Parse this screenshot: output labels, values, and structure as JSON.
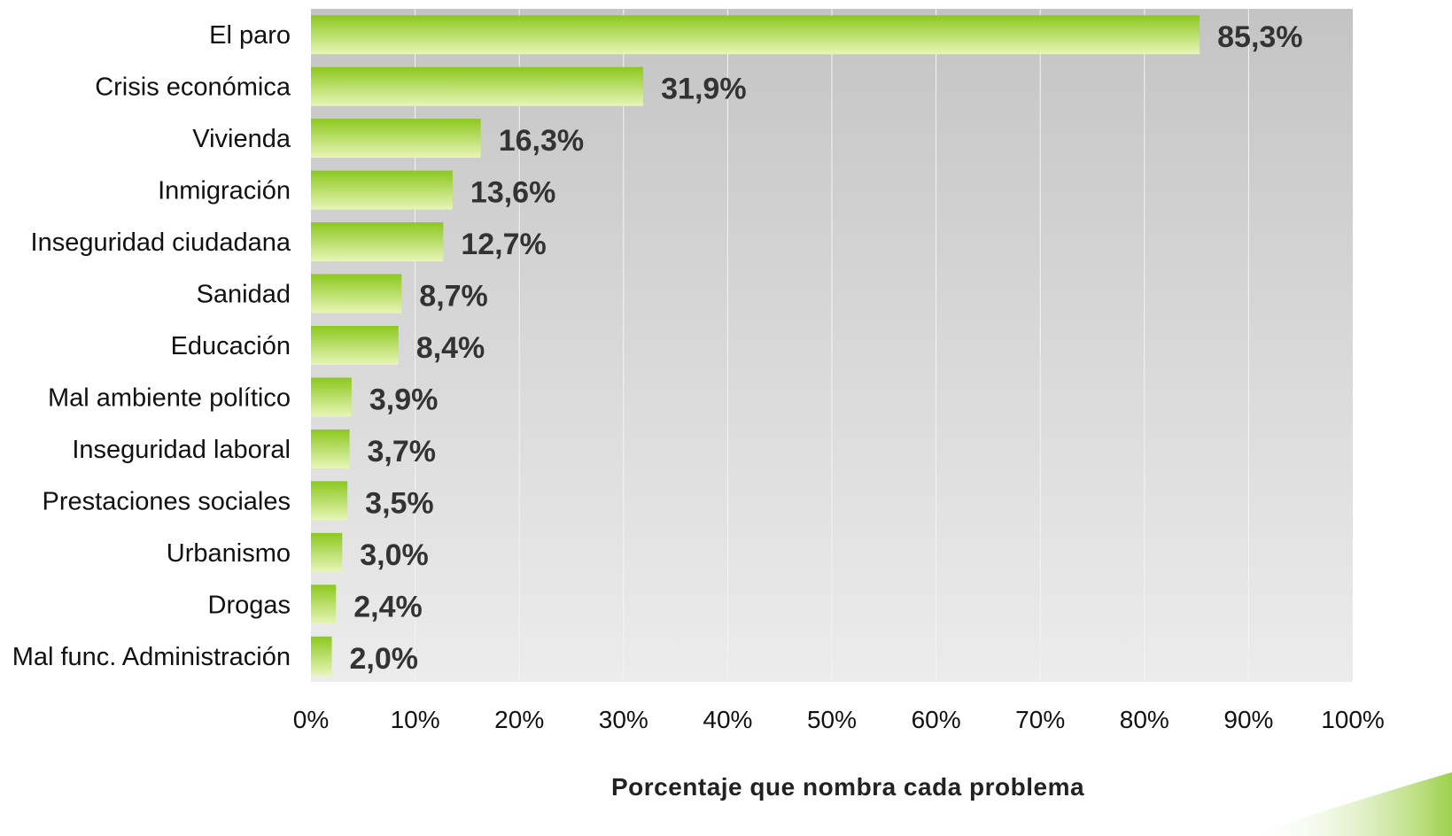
{
  "chart_data": {
    "type": "bar",
    "orientation": "horizontal",
    "categories": [
      "El paro",
      "Crisis económica",
      "Vivienda",
      "Inmigración",
      "Inseguridad ciudadana",
      "Sanidad",
      "Educación",
      "Mal ambiente político",
      "Inseguridad laboral",
      "Prestaciones sociales",
      "Urbanismo",
      "Drogas",
      "Mal func. Administración"
    ],
    "values": [
      85.3,
      31.9,
      16.3,
      13.6,
      12.7,
      8.7,
      8.4,
      3.9,
      3.7,
      3.5,
      3.0,
      2.4,
      2.0
    ],
    "data_labels": [
      "85,3%",
      "31,9%",
      "16,3%",
      "13,6%",
      "12,7%",
      "8,7%",
      "8,4%",
      "3,9%",
      "3,7%",
      "3,5%",
      "3,0%",
      "2,4%",
      "2,0%"
    ],
    "xlabel": "Porcentaje que nombra cada problema",
    "ylabel": "",
    "xlim": [
      0,
      100
    ],
    "x_ticks": [
      0,
      10,
      20,
      30,
      40,
      50,
      60,
      70,
      80,
      90,
      100
    ],
    "x_tick_labels": [
      "0%",
      "10%",
      "20%",
      "30%",
      "40%",
      "50%",
      "60%",
      "70%",
      "80%",
      "90%",
      "100%"
    ],
    "grid": true,
    "legend": "none",
    "colors": {
      "bar_top": "#8cc81e",
      "bar_bottom": "#e8f5b8",
      "plot_bg_top": "#c4c4c4",
      "plot_bg_bottom": "#ececec",
      "gridline": "#f4f4f4",
      "swoosh": "#9ed04a"
    }
  }
}
